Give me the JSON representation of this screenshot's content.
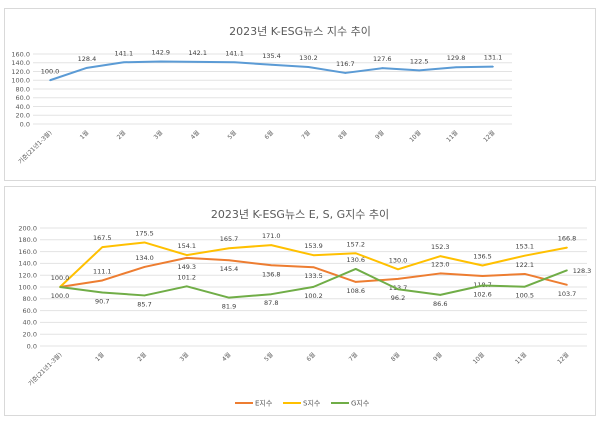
{
  "chart_data": [
    {
      "type": "line",
      "title": "2023년 K-ESG뉴스 지수 추이",
      "categories": [
        "기준(21년1-3월)",
        "1월",
        "2월",
        "3월",
        "4월",
        "5월",
        "6월",
        "7월",
        "8월",
        "9월",
        "10월",
        "11월",
        "12월"
      ],
      "series": [
        {
          "name": "K-ESG뉴스 지수",
          "color": "#5B9BD5",
          "values": [
            100.0,
            128.4,
            141.1,
            142.9,
            142.1,
            141.1,
            135.4,
            130.2,
            116.7,
            127.6,
            122.5,
            129.8,
            131.1
          ],
          "labels": [
            "100.0",
            "128.4",
            "141.1",
            "142.9",
            "142.1",
            "141.1",
            "135.4",
            "130.2",
            "116.7",
            "127.6",
            "122.5",
            "129.8",
            "131.1"
          ]
        }
      ],
      "ylim": [
        0,
        160
      ],
      "yticks": [
        "0.0",
        "20.0",
        "40.0",
        "60.0",
        "80.0",
        "100.0",
        "120.0",
        "140.0",
        "160.0"
      ],
      "grid": true,
      "legend": "none"
    },
    {
      "type": "line",
      "title": "2023년 K-ESG뉴스 E, S, G지수 추이",
      "categories": [
        "기준(21년1-3월)",
        "1월",
        "2월",
        "3월",
        "4월",
        "5월",
        "6월",
        "7월",
        "8월",
        "9월",
        "10월",
        "11월",
        "12월"
      ],
      "series": [
        {
          "name": "E지수",
          "color": "#ED7D31",
          "values": [
            100.0,
            111.1,
            134.0,
            149.3,
            145.4,
            136.8,
            133.5,
            108.6,
            113.7,
            123.0,
            118.7,
            122.1,
            103.7
          ],
          "labels": [
            "100.0",
            "111.1",
            "134.0",
            "149.3",
            "145.4",
            "136.8",
            "133.5",
            "108.6",
            "113.7",
            "123.0",
            "118.7",
            "122.1",
            "103.7"
          ]
        },
        {
          "name": "S지수",
          "color": "#FFC000",
          "values": [
            100.0,
            167.5,
            175.5,
            154.1,
            165.7,
            171.0,
            153.9,
            157.2,
            130.0,
            152.3,
            136.5,
            153.1,
            166.8
          ],
          "labels": [
            "100.0",
            "167.5",
            "175.5",
            "154.1",
            "165.7",
            "171.0",
            "153.9",
            "157.2",
            "130.0",
            "152.3",
            "136.5",
            "153.1",
            "166.8"
          ]
        },
        {
          "name": "G지수",
          "color": "#70AD47",
          "values": [
            100.0,
            90.7,
            85.7,
            101.2,
            81.9,
            87.8,
            100.2,
            130.6,
            96.2,
            86.6,
            102.6,
            100.5,
            128.3
          ],
          "labels": [
            "",
            "90.7",
            "85.7",
            "101.2",
            "81.9",
            "87.8",
            "100.2",
            "130.6",
            "96.2",
            "86.6",
            "102.6",
            "100.5",
            "128.3"
          ]
        }
      ],
      "ylim": [
        0,
        200
      ],
      "yticks": [
        "0.0",
        "20.0",
        "40.0",
        "60.0",
        "80.0",
        "100.0",
        "120.0",
        "140.0",
        "160.0",
        "180.0",
        "200.0"
      ],
      "grid": true,
      "legend": "bottom"
    }
  ]
}
